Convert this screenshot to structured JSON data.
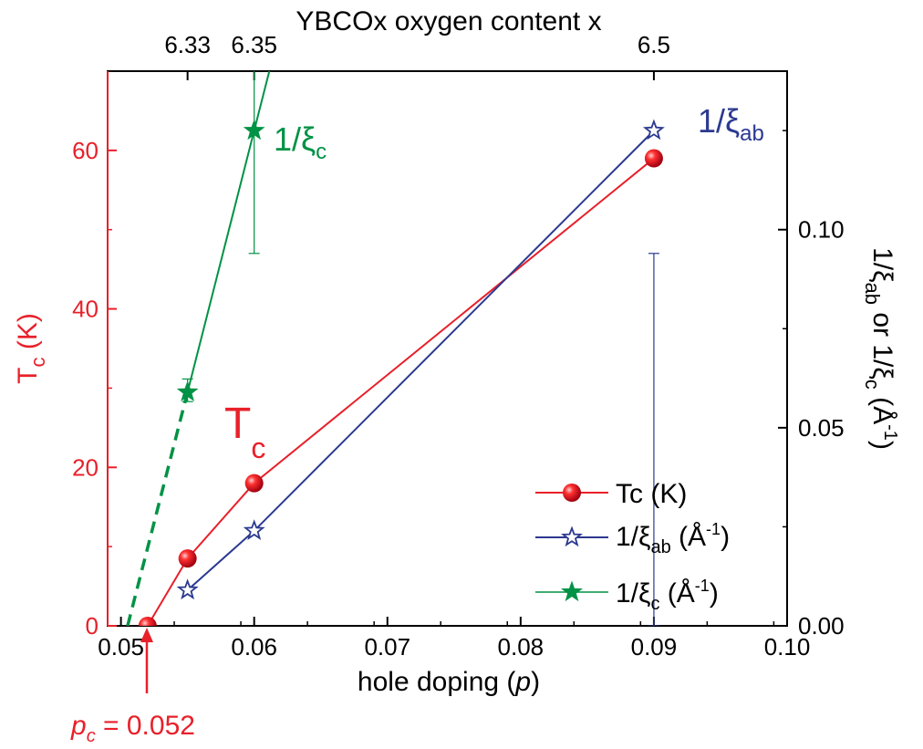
{
  "chart_data": {
    "type": "line",
    "top_axis": {
      "label": "YBCOx oxygen content x",
      "ticks": [
        {
          "label": "6.33",
          "at_p": 0.055
        },
        {
          "label": "6.35",
          "at_p": 0.06
        },
        {
          "label": "6.5",
          "at_p": 0.09
        }
      ]
    },
    "x_axis": {
      "label_text": "hole doping (",
      "label_italic": "p",
      "label_close": ")",
      "range": [
        0.049,
        0.1
      ],
      "ticks": [
        0.05,
        0.06,
        0.07,
        0.08,
        0.09,
        0.1
      ],
      "tick_labels": [
        "0.05",
        "0.06",
        "0.07",
        "0.08",
        "0.09",
        "0.10"
      ]
    },
    "y_left": {
      "label_main": "T",
      "label_sub": "c",
      "label_rest": " (K)",
      "range": [
        0,
        70
      ],
      "ticks": [
        0,
        20,
        40,
        60
      ],
      "tick_labels": [
        "0",
        "20",
        "40",
        "60"
      ]
    },
    "y_right": {
      "label_parts": [
        "1/ξ",
        "ab",
        " or 1/ξ",
        "c",
        " (Å",
        "-1",
        ")"
      ],
      "range": [
        0,
        0.14
      ],
      "ticks": [
        0,
        0.05,
        0.1
      ],
      "tick_labels": [
        "0.00",
        "0.05",
        "0.10"
      ]
    },
    "series": [
      {
        "name": "Tc (K)",
        "axis": "left",
        "color": "#e8202a",
        "marker": "sphere",
        "x": [
          0.052,
          0.055,
          0.06,
          0.09
        ],
        "y": [
          0,
          8.5,
          18,
          59
        ]
      },
      {
        "name": "1/ξab (Å-1)",
        "axis": "right",
        "color": "#2b3990",
        "marker": "open-star",
        "x": [
          0.055,
          0.06,
          0.09
        ],
        "y": [
          0.009,
          0.024,
          0.125
        ],
        "errors": [
          [
            0.09,
            0.0,
            0.094
          ]
        ]
      },
      {
        "name": "1/ξc (Å-1)",
        "axis": "right",
        "color": "#009245",
        "marker": "filled-star",
        "x": [
          0.055,
          0.06
        ],
        "y": [
          0.059,
          0.125
        ],
        "errors": [
          [
            0.055,
            0.0566,
            0.0623
          ],
          [
            0.06,
            0.094,
            0.26
          ]
        ],
        "extrapolation": {
          "x": [
            0.0505,
            0.055
          ],
          "y": [
            0.0,
            0.059
          ],
          "style": "dashed"
        }
      }
    ],
    "annotations": {
      "tc_label": {
        "main": "T",
        "sub": "c"
      },
      "xi_ab_label": {
        "main": "1/ξ",
        "sub": "ab"
      },
      "xi_c_label": {
        "main": "1/ξ",
        "sub": "c"
      },
      "pc_label": {
        "italic": "p",
        "sub": "c",
        "rest": " = 0.052",
        "at_p": 0.052
      }
    },
    "legend": {
      "position": "bottom-right",
      "entries": [
        {
          "main": "Tc (K)"
        },
        {
          "main": "1/ξ",
          "sub": "ab",
          "rest": " (Å",
          "sup": "-1",
          "end": ")"
        },
        {
          "main": "1/ξ",
          "sub": "c",
          "rest": "  (Å",
          "sup": "-1",
          "end": ")"
        }
      ]
    },
    "grid": false
  }
}
